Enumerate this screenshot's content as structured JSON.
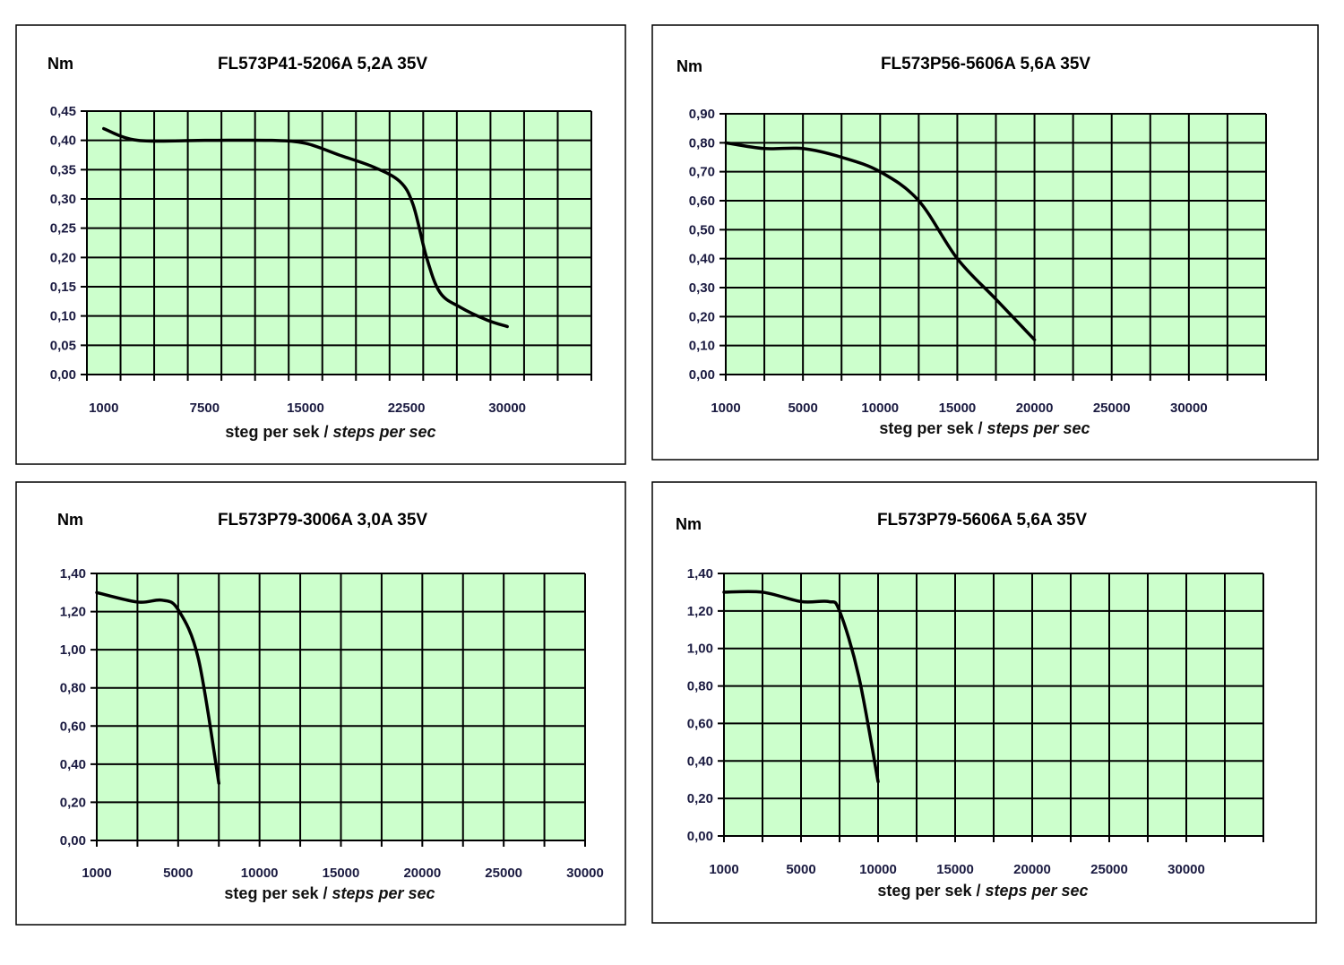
{
  "style": {
    "plot_bg": "#ccffcc",
    "grid": "#000000",
    "line": "#000000",
    "tick_text": "#1a1a40"
  },
  "chart_data": [
    {
      "type": "line",
      "title": "FL573P41-5206A 5,2A 35V",
      "ylabel": "Nm",
      "xlabel": {
        "regular": "steg per sek / ",
        "italic": "steps per sec"
      },
      "ylim": [
        0,
        0.45
      ],
      "yticks": [
        "0,00",
        "0,05",
        "0,10",
        "0,15",
        "0,20",
        "0,25",
        "0,30",
        "0,35",
        "0,40",
        "0,45"
      ],
      "xticks": [
        "1000",
        "7500",
        "15000",
        "22500",
        "30000"
      ],
      "grid": true,
      "x": [
        1000,
        3200,
        7500,
        12500,
        15000,
        17500,
        20000,
        22000,
        23000,
        24000,
        25000,
        26500,
        28500,
        30000
      ],
      "y": [
        0.42,
        0.4,
        0.4,
        0.4,
        0.395,
        0.375,
        0.355,
        0.33,
        0.29,
        0.2,
        0.14,
        0.115,
        0.093,
        0.082
      ]
    },
    {
      "type": "line",
      "title": "FL573P56-5606A 5,6A 35V",
      "ylabel": "Nm",
      "xlabel": {
        "regular": "steg per sek / ",
        "italic": "steps per sec"
      },
      "ylim": [
        0,
        0.9
      ],
      "yticks": [
        "0,00",
        "0,10",
        "0,20",
        "0,30",
        "0,40",
        "0,50",
        "0,60",
        "0,70",
        "0,80",
        "0,90"
      ],
      "xticks": [
        "1000",
        "5000",
        "10000",
        "15000",
        "20000",
        "25000",
        "30000"
      ],
      "grid": true,
      "x": [
        1000,
        3000,
        5000,
        7500,
        10000,
        12500,
        15000,
        17500,
        20000
      ],
      "y": [
        0.8,
        0.78,
        0.78,
        0.75,
        0.7,
        0.6,
        0.4,
        0.26,
        0.12
      ]
    },
    {
      "type": "line",
      "title": "FL573P79-3006A 3,0A 35V",
      "ylabel": "Nm",
      "xlabel": {
        "regular": "steg per sek / ",
        "italic": "steps per sec"
      },
      "ylim": [
        0,
        1.4
      ],
      "yticks": [
        "0,00",
        "0,20",
        "0,40",
        "0,60",
        "0,80",
        "1,00",
        "1,20",
        "1,40"
      ],
      "xticks": [
        "1000",
        "5000",
        "10000",
        "15000",
        "20000",
        "25000",
        "30000"
      ],
      "grid": true,
      "x": [
        1000,
        3000,
        4200,
        5000,
        6250,
        7500
      ],
      "y": [
        1.3,
        1.25,
        1.26,
        1.21,
        0.95,
        0.3
      ]
    },
    {
      "type": "line",
      "title": "FL573P79-5606A 5,6A 35V",
      "ylabel": "Nm",
      "xlabel": {
        "regular": "steg per sek / ",
        "italic": "steps per sec"
      },
      "ylim": [
        0,
        1.4
      ],
      "yticks": [
        "0,00",
        "0,20",
        "0,40",
        "0,60",
        "0,80",
        "1,00",
        "1,20",
        "1,40"
      ],
      "xticks": [
        "1000",
        "5000",
        "10000",
        "15000",
        "20000",
        "25000",
        "30000"
      ],
      "grid": true,
      "x": [
        1000,
        3000,
        5000,
        6800,
        7500,
        8750,
        10000
      ],
      "y": [
        1.3,
        1.3,
        1.25,
        1.25,
        1.2,
        0.85,
        0.29
      ]
    }
  ]
}
